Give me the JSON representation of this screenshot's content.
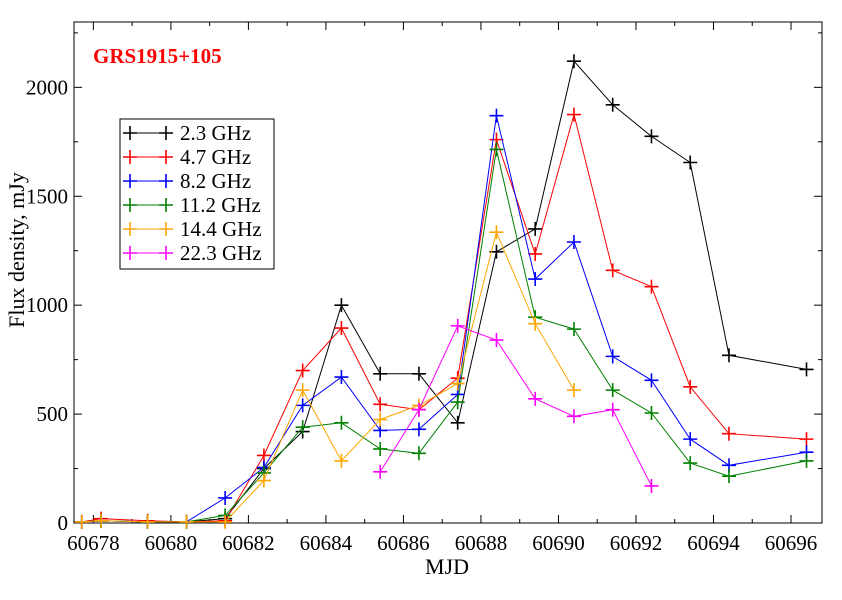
{
  "chart_data": {
    "type": "line",
    "title": "GRS1915+105",
    "title_color": "#ff0000",
    "xlabel": "MJD",
    "ylabel": "Flux density, mJy",
    "xlim": [
      60677.5,
      60696.8
    ],
    "ylim": [
      0,
      2300
    ],
    "x_ticks": [
      60678,
      60680,
      60682,
      60684,
      60686,
      60688,
      60690,
      60692,
      60694,
      60696
    ],
    "x_tick_labels": [
      "60678",
      "60680",
      "60682",
      "60684",
      "60686",
      "60688",
      "60690",
      "60692",
      "60694",
      "60696"
    ],
    "y_ticks": [
      0,
      500,
      1000,
      1500,
      2000
    ],
    "y_tick_labels": [
      "0",
      "500",
      "1000",
      "1500",
      "2000"
    ],
    "grid": false,
    "legend_position": "upper-left",
    "marker": "plus",
    "series": [
      {
        "name": "2.3 GHz",
        "color": "#000000",
        "x": [
          60677.7,
          60678.2,
          60679.4,
          60680.4,
          60681.4,
          60682.4,
          60683.4,
          60684.4,
          60685.4,
          60686.4,
          60687.4,
          60688.4,
          60689.4,
          60690.4,
          60691.4,
          60692.4,
          60693.4,
          60694.4,
          60696.4
        ],
        "y": [
          5,
          10,
          5,
          5,
          20,
          250,
          420,
          1000,
          685,
          685,
          460,
          1245,
          1350,
          2120,
          1920,
          1775,
          1655,
          770,
          705
        ]
      },
      {
        "name": "4.7 GHz",
        "color": "#ff0000",
        "x": [
          60677.7,
          60678.2,
          60679.4,
          60680.4,
          60681.4,
          60682.4,
          60683.4,
          60684.4,
          60685.4,
          60686.4,
          60687.4,
          60688.4,
          60689.4,
          60690.4,
          60691.4,
          60692.4,
          60693.4,
          60694.4,
          60696.4
        ],
        "y": [
          5,
          20,
          10,
          5,
          10,
          310,
          700,
          895,
          545,
          520,
          665,
          1760,
          1235,
          1875,
          1160,
          1085,
          625,
          410,
          385
        ]
      },
      {
        "name": "8.2 GHz",
        "color": "#0000ff",
        "x": [
          60677.7,
          60678.2,
          60679.4,
          60680.4,
          60681.4,
          60682.4,
          60683.4,
          60684.4,
          60685.4,
          60686.4,
          60687.4,
          60688.4,
          60689.4,
          60690.4,
          60691.4,
          60692.4,
          60693.4,
          60694.4,
          60696.4
        ],
        "y": [
          5,
          10,
          5,
          5,
          115,
          255,
          540,
          670,
          425,
          430,
          590,
          1870,
          1120,
          1290,
          765,
          655,
          385,
          265,
          325
        ]
      },
      {
        "name": "11.2 GHz",
        "color": "#008000",
        "x": [
          60677.7,
          60678.2,
          60679.4,
          60680.4,
          60681.4,
          60682.4,
          60683.4,
          60684.4,
          60685.4,
          60686.4,
          60687.4,
          60688.4,
          60689.4,
          60690.4,
          60691.4,
          60692.4,
          60693.4,
          60694.4,
          60696.4
        ],
        "y": [
          5,
          10,
          5,
          5,
          35,
          230,
          440,
          460,
          340,
          320,
          555,
          1715,
          945,
          890,
          610,
          505,
          275,
          215,
          285
        ]
      },
      {
        "name": "14.4 GHz",
        "color": "#ffa500",
        "x": [
          60677.7,
          60678.2,
          60679.4,
          60680.4,
          60681.4,
          60682.4,
          60683.4,
          60684.4,
          60685.4,
          60686.4,
          60687.4,
          60688.4,
          60689.4,
          60690.4
        ],
        "y": [
          5,
          10,
          5,
          5,
          5,
          195,
          610,
          285,
          475,
          540,
          640,
          1335,
          915,
          610
        ]
      },
      {
        "name": "22.3 GHz",
        "color": "#ff00ff",
        "x": [
          60685.4,
          60686.4,
          60687.4,
          60688.4,
          60689.4,
          60690.4,
          60691.4,
          60692.4
        ],
        "y": [
          235,
          520,
          905,
          840,
          570,
          490,
          520,
          170
        ]
      }
    ]
  }
}
